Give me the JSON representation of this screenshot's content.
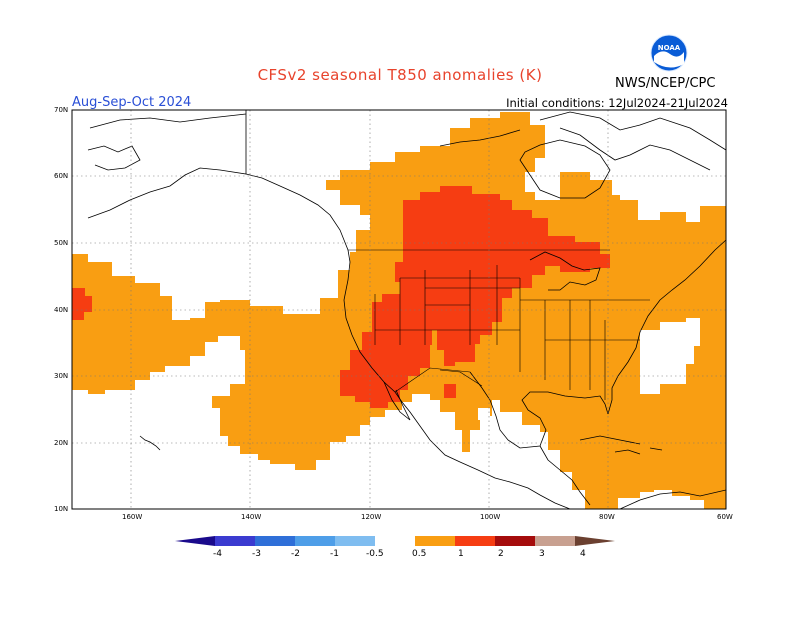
{
  "title": "CFSv2 seasonal T850 anomalies (K)",
  "season": "Aug-Sep-Oct 2024",
  "initial_conditions": "Initial conditions: 12Jul2024-21Jul2024",
  "agency": "NWS/NCEP/CPC",
  "logo_text": "NOAA",
  "lat_labels": [
    "70N",
    "60N",
    "50N",
    "40N",
    "30N",
    "20N",
    "10N"
  ],
  "lon_labels": [
    "160W",
    "140W",
    "120W",
    "100W",
    "80W",
    "60W"
  ],
  "colorbar": {
    "labels": [
      "-4",
      "-3",
      "-2",
      "-1",
      "-0.5",
      "0.5",
      "1",
      "2",
      "3",
      "4"
    ],
    "colors": [
      "#1a0a8c",
      "#3b3bd0",
      "#2f6fd8",
      "#4e9ee8",
      "#7fbdf0",
      "#ffffff",
      "#f99e12",
      "#f63d12",
      "#a50c0c",
      "#c8a090",
      "#6b4030"
    ]
  },
  "colors": {
    "anomaly_0_5_to_1": "#f99e12",
    "anomaly_1_to_2": "#f63d12",
    "title": "#e8432c",
    "season": "#2a4fd6"
  }
}
